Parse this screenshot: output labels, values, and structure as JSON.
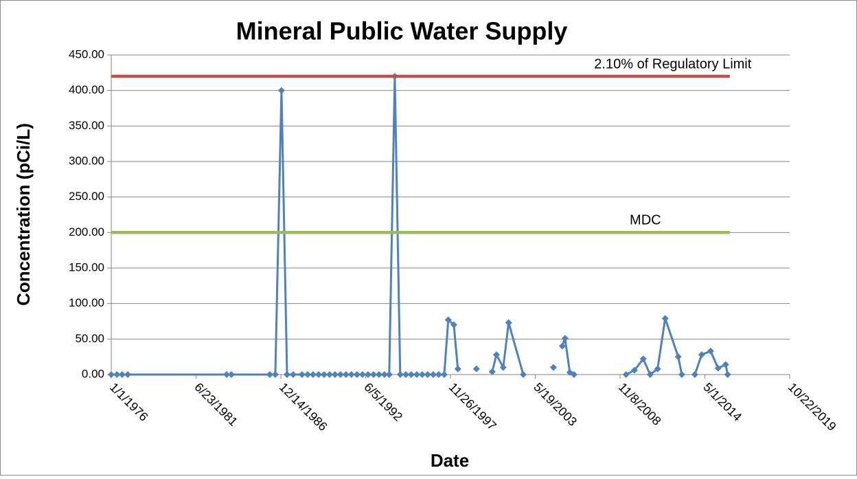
{
  "chart_data": {
    "type": "line",
    "title": "Mineral Public Water Supply",
    "x_label": "Date",
    "y_label": "Concentration (pCi/L)",
    "xlim": [
      "1976-01-01",
      "2019-10-22"
    ],
    "xticks": [
      {
        "value": "1976-01-01",
        "label": "1/1/1976"
      },
      {
        "value": "1981-06-23",
        "label": "6/23/1981"
      },
      {
        "value": "1986-12-14",
        "label": "12/14/1986"
      },
      {
        "value": "1992-06-05",
        "label": "6/5/1992"
      },
      {
        "value": "1997-11-26",
        "label": "11/26/1997"
      },
      {
        "value": "2003-05-19",
        "label": "5/19/2003"
      },
      {
        "value": "2008-11-08",
        "label": "11/8/2008"
      },
      {
        "value": "2014-05-01",
        "label": "5/1/2014"
      },
      {
        "value": "2019-10-22",
        "label": "10/22/2019"
      }
    ],
    "ylim": [
      0,
      450
    ],
    "yticks": [
      {
        "value": 0,
        "label": "0.00"
      },
      {
        "value": 50,
        "label": "50.00"
      },
      {
        "value": 100,
        "label": "100.00"
      },
      {
        "value": 150,
        "label": "150.00"
      },
      {
        "value": 200,
        "label": "200.00"
      },
      {
        "value": 250,
        "label": "250.00"
      },
      {
        "value": 300,
        "label": "300.00"
      },
      {
        "value": 350,
        "label": "350.00"
      },
      {
        "value": 400,
        "label": "400.00"
      },
      {
        "value": 450,
        "label": "450.00"
      }
    ],
    "grid": true,
    "series": [
      {
        "color": "#4f81bd",
        "marker": "diamond",
        "x": [
          "1976-01-01",
          "1976-05-15",
          "1976-09-15",
          "1977-01-25",
          "1983-06-15",
          "1983-10-05",
          "1986-03-28",
          "1986-08-05",
          "1986-12-28",
          "1987-05-08",
          "1987-10-01",
          "1988-04-25",
          "1988-09-05",
          "1989-01-12",
          "1989-05-22",
          "1989-09-28",
          "1990-02-06",
          "1990-06-14",
          "1990-10-19",
          "1991-02-28",
          "1991-07-05",
          "1991-11-13",
          "1992-03-22",
          "1992-07-31",
          "1992-12-06",
          "1993-04-16",
          "1993-08-22",
          "1993-12-13",
          "1994-04-23",
          "1994-08-29",
          "1995-01-08",
          "1995-05-15",
          "1995-09-24",
          "1996-01-30",
          "1996-06-06",
          "1996-10-16",
          "1997-02-21",
          "1997-07-01",
          "1997-10-05",
          "1998-02-14",
          "1998-05-19",
          null,
          "1999-07-31",
          null,
          "2000-08-07",
          "2000-11-14",
          "2001-04-23",
          "2001-08-29",
          "2002-08-08",
          null,
          "2004-07-20",
          null,
          "2005-02-14",
          "2005-04-20",
          "2005-08-11",
          "2005-11-17",
          null,
          "2009-03-28",
          "2009-10-12",
          "2010-05-08",
          "2010-10-19",
          "2011-04-12",
          "2011-10-08",
          "2012-08-10",
          "2012-11-03",
          null,
          "2013-09-06",
          "2014-02-14",
          "2014-09-13",
          "2015-03-08",
          "2015-09-02",
          "2015-10-20"
        ],
        "values": [
          0,
          0,
          0,
          0,
          0,
          0,
          0,
          0,
          400,
          0,
          0,
          0,
          0,
          0,
          0,
          0,
          0,
          0,
          0,
          0,
          0,
          0,
          0,
          0,
          0,
          0,
          0,
          0,
          420,
          0,
          0,
          0,
          0,
          0,
          0,
          0,
          0,
          0,
          77,
          70,
          8,
          null,
          8,
          null,
          4,
          28,
          10,
          73,
          0,
          null,
          10,
          null,
          40,
          51,
          3,
          0,
          null,
          0,
          6,
          22,
          0,
          8,
          79,
          25,
          0,
          null,
          0,
          28,
          33,
          9,
          14,
          0
        ]
      },
      {
        "name": "2.10% of Regulatory Limit",
        "color": "#c0504d",
        "x": [
          "1976-01-01",
          "2015-12-10"
        ],
        "values": [
          420,
          420
        ]
      },
      {
        "name": "MDC",
        "color": "#9bbb59",
        "x": [
          "1976-01-01",
          "2015-12-10"
        ],
        "values": [
          200,
          200
        ]
      }
    ]
  }
}
